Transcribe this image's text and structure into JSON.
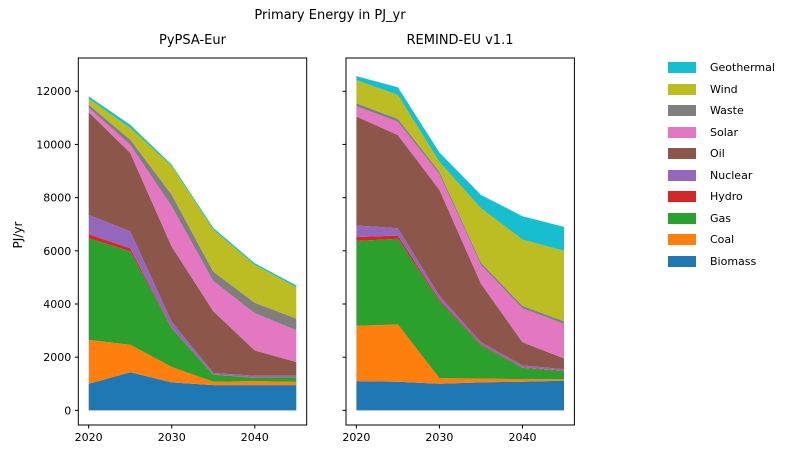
{
  "figure": {
    "title": "Primary Energy in PJ_yr",
    "ylabel": "PJ/yr"
  },
  "legend": {
    "entries": [
      {
        "label": "Geothermal",
        "color": "#17becf"
      },
      {
        "label": "Wind",
        "color": "#bcbd22"
      },
      {
        "label": "Waste",
        "color": "#7f7f7f"
      },
      {
        "label": "Solar",
        "color": "#e377c2"
      },
      {
        "label": "Oil",
        "color": "#8c564b"
      },
      {
        "label": "Nuclear",
        "color": "#9467bd"
      },
      {
        "label": "Hydro",
        "color": "#d62728"
      },
      {
        "label": "Gas",
        "color": "#2ca02c"
      },
      {
        "label": "Coal",
        "color": "#ff7f0e"
      },
      {
        "label": "Biomass",
        "color": "#1f77b4"
      }
    ]
  },
  "chart_data": [
    {
      "type": "area",
      "title": "PyPSA-Eur",
      "x": [
        2020,
        2025,
        2030,
        2035,
        2040,
        2045
      ],
      "xticks": [
        2020,
        2030,
        2040
      ],
      "yticks": [
        0,
        2000,
        4000,
        6000,
        8000,
        10000,
        12000
      ],
      "xlim": [
        2018.75,
        2046.25
      ],
      "ylim": [
        -550,
        13250
      ],
      "ylabel": "PJ/yr",
      "stack_order": "bottom-to-top",
      "series": [
        {
          "name": "Biomass",
          "color": "#1f77b4",
          "values": [
            1000,
            1430,
            1050,
            950,
            950,
            950
          ]
        },
        {
          "name": "Coal",
          "color": "#ff7f0e",
          "values": [
            1650,
            1040,
            580,
            125,
            150,
            120
          ]
        },
        {
          "name": "Gas",
          "color": "#2ca02c",
          "values": [
            3820,
            3510,
            1450,
            265,
            130,
            170
          ]
        },
        {
          "name": "Hydro",
          "color": "#d62728",
          "values": [
            150,
            115,
            20,
            10,
            5,
            0
          ]
        },
        {
          "name": "Nuclear",
          "color": "#9467bd",
          "values": [
            730,
            640,
            230,
            55,
            70,
            60
          ]
        },
        {
          "name": "Oil",
          "color": "#8c564b",
          "values": [
            3860,
            2945,
            2830,
            2325,
            945,
            520
          ]
        },
        {
          "name": "Solar",
          "color": "#e377c2",
          "values": [
            170,
            310,
            1510,
            1130,
            1400,
            1190
          ]
        },
        {
          "name": "Waste",
          "color": "#7f7f7f",
          "values": [
            110,
            190,
            440,
            350,
            400,
            440
          ]
        },
        {
          "name": "Wind",
          "color": "#bcbd22",
          "values": [
            230,
            440,
            1080,
            1580,
            1420,
            1180
          ]
        },
        {
          "name": "Geothermal",
          "color": "#17becf",
          "values": [
            85,
            120,
            50,
            70,
            60,
            70
          ]
        }
      ]
    },
    {
      "type": "area",
      "title": "REMIND-EU v1.1",
      "x": [
        2020,
        2025,
        2030,
        2035,
        2040,
        2045
      ],
      "xticks": [
        2020,
        2030,
        2040
      ],
      "yticks": [
        0,
        2000,
        4000,
        6000,
        8000,
        10000,
        12000
      ],
      "xlim": [
        2018.75,
        2046.25
      ],
      "ylim": [
        -550,
        13250
      ],
      "ylabel": "",
      "stack_order": "bottom-to-top",
      "series": [
        {
          "name": "Biomass",
          "color": "#1f77b4",
          "values": [
            1100,
            1080,
            1000,
            1050,
            1080,
            1120
          ]
        },
        {
          "name": "Coal",
          "color": "#ff7f0e",
          "values": [
            2080,
            2150,
            210,
            150,
            90,
            50
          ]
        },
        {
          "name": "Gas",
          "color": "#2ca02c",
          "values": [
            3190,
            3220,
            2890,
            1250,
            430,
            300
          ]
        },
        {
          "name": "Hydro",
          "color": "#d62728",
          "values": [
            150,
            120,
            60,
            30,
            20,
            20
          ]
        },
        {
          "name": "Nuclear",
          "color": "#9467bd",
          "values": [
            430,
            280,
            150,
            80,
            70,
            60
          ]
        },
        {
          "name": "Oil",
          "color": "#8c564b",
          "values": [
            4100,
            3500,
            3980,
            2200,
            870,
            400
          ]
        },
        {
          "name": "Solar",
          "color": "#e377c2",
          "values": [
            380,
            500,
            590,
            700,
            1280,
            1300
          ]
        },
        {
          "name": "Waste",
          "color": "#7f7f7f",
          "values": [
            120,
            110,
            90,
            90,
            90,
            100
          ]
        },
        {
          "name": "Wind",
          "color": "#bcbd22",
          "values": [
            870,
            900,
            375,
            2050,
            2490,
            2650
          ]
        },
        {
          "name": "Geothermal",
          "color": "#17becf",
          "values": [
            150,
            290,
            350,
            500,
            880,
            900
          ]
        }
      ]
    }
  ]
}
